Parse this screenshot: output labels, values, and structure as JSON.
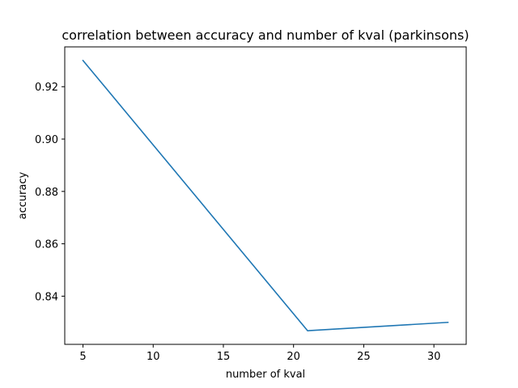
{
  "chart_data": {
    "type": "line",
    "title": "correlation between accuracy and number of kval (parkinsons)",
    "xlabel": "number of kval",
    "ylabel": "accuracy",
    "xlim": [
      3.7,
      32.3
    ],
    "ylim": [
      0.8216,
      0.9352
    ],
    "xticks": [
      5,
      10,
      15,
      20,
      25,
      30
    ],
    "yticks": [
      0.84,
      0.86,
      0.88,
      0.9,
      0.92
    ],
    "ytick_labels": [
      "0.84",
      "0.86",
      "0.88",
      "0.90",
      "0.92"
    ],
    "series": [
      {
        "name": "accuracy",
        "color": "#1f77b4",
        "x": [
          5,
          21,
          31
        ],
        "y": [
          0.93,
          0.8268,
          0.83
        ]
      }
    ],
    "grid": false,
    "legend": "none"
  }
}
